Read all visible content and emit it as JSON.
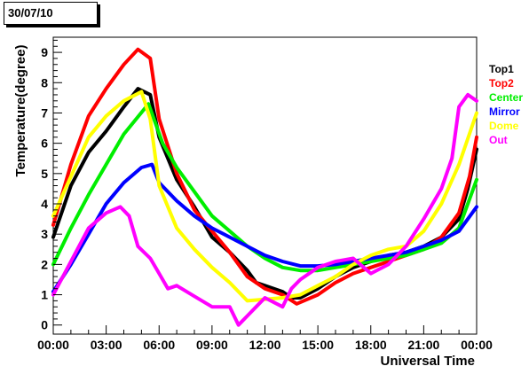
{
  "header": {
    "date": "30/07/10"
  },
  "chart_data": {
    "type": "line",
    "xlabel": "Universal Time",
    "ylabel": "Temperature(degree)",
    "x_unit": "hours",
    "xlim": [
      0,
      24
    ],
    "ylim": [
      -0.3,
      9.5
    ],
    "x_ticks": [
      {
        "value": 0,
        "label": "00:00"
      },
      {
        "value": 3,
        "label": "03:00"
      },
      {
        "value": 6,
        "label": "06:00"
      },
      {
        "value": 9,
        "label": "09:00"
      },
      {
        "value": 12,
        "label": "12:00"
      },
      {
        "value": 15,
        "label": "15:00"
      },
      {
        "value": 18,
        "label": "18:00"
      },
      {
        "value": 21,
        "label": "21:00"
      },
      {
        "value": 24,
        "label": "00:00"
      }
    ],
    "y_ticks": [
      0,
      1,
      2,
      3,
      4,
      5,
      6,
      7,
      8,
      9
    ],
    "grid": false,
    "legend_position": "right",
    "series": [
      {
        "name": "Top1",
        "color": "#000000",
        "points": [
          [
            0,
            2.9
          ],
          [
            1,
            4.6
          ],
          [
            2,
            5.7
          ],
          [
            3,
            6.4
          ],
          [
            4,
            7.2
          ],
          [
            4.8,
            7.8
          ],
          [
            5.5,
            7.6
          ],
          [
            6,
            6.2
          ],
          [
            7,
            4.8
          ],
          [
            8,
            3.9
          ],
          [
            9,
            2.9
          ],
          [
            10,
            2.4
          ],
          [
            11,
            1.8
          ],
          [
            11.5,
            1.4
          ],
          [
            12,
            1.3
          ],
          [
            13,
            1.1
          ],
          [
            13.5,
            0.9
          ],
          [
            14,
            0.9
          ],
          [
            15,
            1.2
          ],
          [
            16,
            1.6
          ],
          [
            17,
            1.9
          ],
          [
            18,
            2.1
          ],
          [
            19,
            2.3
          ],
          [
            20,
            2.4
          ],
          [
            21,
            2.6
          ],
          [
            22,
            2.9
          ],
          [
            23,
            3.5
          ],
          [
            23.5,
            4.5
          ],
          [
            24,
            5.8
          ]
        ]
      },
      {
        "name": "Top2",
        "color": "#ff0000",
        "points": [
          [
            0,
            3.3
          ],
          [
            1,
            5.3
          ],
          [
            2,
            6.9
          ],
          [
            3,
            7.8
          ],
          [
            4,
            8.6
          ],
          [
            4.8,
            9.1
          ],
          [
            5.5,
            8.8
          ],
          [
            6,
            6.8
          ],
          [
            7,
            5.0
          ],
          [
            8,
            3.8
          ],
          [
            9,
            3.1
          ],
          [
            10,
            2.4
          ],
          [
            11,
            1.6
          ],
          [
            12,
            1.2
          ],
          [
            13,
            1.0
          ],
          [
            13.8,
            0.7
          ],
          [
            15,
            1.0
          ],
          [
            16,
            1.4
          ],
          [
            17,
            1.7
          ],
          [
            18,
            1.9
          ],
          [
            19,
            2.1
          ],
          [
            20,
            2.3
          ],
          [
            21,
            2.5
          ],
          [
            22,
            2.9
          ],
          [
            23,
            3.7
          ],
          [
            23.6,
            4.9
          ],
          [
            24,
            6.2
          ]
        ]
      },
      {
        "name": "Center",
        "color": "#00ee00",
        "points": [
          [
            0,
            2.0
          ],
          [
            1,
            3.2
          ],
          [
            2,
            4.3
          ],
          [
            3,
            5.3
          ],
          [
            4,
            6.3
          ],
          [
            5.4,
            7.3
          ],
          [
            6.2,
            6.0
          ],
          [
            7,
            5.2
          ],
          [
            8,
            4.4
          ],
          [
            9,
            3.6
          ],
          [
            10,
            3.1
          ],
          [
            11,
            2.6
          ],
          [
            12,
            2.2
          ],
          [
            13,
            1.9
          ],
          [
            14,
            1.8
          ],
          [
            15,
            1.8
          ],
          [
            16,
            1.9
          ],
          [
            17,
            2.0
          ],
          [
            18,
            2.1
          ],
          [
            19,
            2.2
          ],
          [
            20,
            2.3
          ],
          [
            21,
            2.5
          ],
          [
            22,
            2.7
          ],
          [
            23,
            3.2
          ],
          [
            24,
            4.8
          ]
        ]
      },
      {
        "name": "Mirror",
        "color": "#0000ff",
        "points": [
          [
            0,
            1.1
          ],
          [
            1,
            2.0
          ],
          [
            2,
            3.0
          ],
          [
            3,
            4.0
          ],
          [
            4,
            4.7
          ],
          [
            5,
            5.2
          ],
          [
            5.6,
            5.3
          ],
          [
            6,
            4.7
          ],
          [
            7,
            4.1
          ],
          [
            8,
            3.6
          ],
          [
            9,
            3.2
          ],
          [
            10,
            2.9
          ],
          [
            11,
            2.6
          ],
          [
            12,
            2.3
          ],
          [
            13,
            2.1
          ],
          [
            14,
            1.95
          ],
          [
            15,
            1.95
          ],
          [
            16,
            2.0
          ],
          [
            17,
            2.1
          ],
          [
            18,
            2.2
          ],
          [
            19,
            2.3
          ],
          [
            20,
            2.4
          ],
          [
            21,
            2.6
          ],
          [
            22,
            2.8
          ],
          [
            23,
            3.1
          ],
          [
            24,
            3.9
          ]
        ]
      },
      {
        "name": "Dome",
        "color": "#ffff00",
        "points": [
          [
            0,
            3.6
          ],
          [
            1,
            4.9
          ],
          [
            2,
            6.2
          ],
          [
            3,
            6.9
          ],
          [
            4,
            7.4
          ],
          [
            5,
            7.7
          ],
          [
            5.5,
            6.8
          ],
          [
            6,
            4.6
          ],
          [
            7,
            3.2
          ],
          [
            8,
            2.5
          ],
          [
            9,
            1.9
          ],
          [
            10,
            1.4
          ],
          [
            11,
            0.8
          ],
          [
            12,
            0.85
          ],
          [
            13,
            0.9
          ],
          [
            14,
            1.0
          ],
          [
            15,
            1.3
          ],
          [
            16,
            1.6
          ],
          [
            17,
            2.0
          ],
          [
            18,
            2.3
          ],
          [
            19,
            2.5
          ],
          [
            20,
            2.6
          ],
          [
            21,
            3.1
          ],
          [
            22,
            4.0
          ],
          [
            23,
            5.3
          ],
          [
            24,
            7.0
          ]
        ]
      },
      {
        "name": "Out",
        "color": "#ff00ff",
        "points": [
          [
            0,
            1.0
          ],
          [
            1,
            2.1
          ],
          [
            2,
            3.2
          ],
          [
            3,
            3.7
          ],
          [
            3.8,
            3.9
          ],
          [
            4.3,
            3.6
          ],
          [
            4.8,
            2.6
          ],
          [
            5.5,
            2.2
          ],
          [
            6,
            1.7
          ],
          [
            6.5,
            1.2
          ],
          [
            7,
            1.3
          ],
          [
            8,
            0.95
          ],
          [
            9,
            0.6
          ],
          [
            10,
            0.6
          ],
          [
            10.5,
            0.0
          ],
          [
            11,
            0.3
          ],
          [
            11.5,
            0.6
          ],
          [
            12,
            0.9
          ],
          [
            13,
            0.6
          ],
          [
            13.5,
            1.2
          ],
          [
            14,
            1.5
          ],
          [
            15,
            1.9
          ],
          [
            16,
            2.1
          ],
          [
            17,
            2.2
          ],
          [
            18,
            1.7
          ],
          [
            19,
            2.0
          ],
          [
            20,
            2.6
          ],
          [
            21,
            3.5
          ],
          [
            22,
            4.5
          ],
          [
            22.6,
            5.5
          ],
          [
            23,
            7.2
          ],
          [
            23.5,
            7.6
          ],
          [
            24,
            7.4
          ]
        ]
      }
    ]
  }
}
